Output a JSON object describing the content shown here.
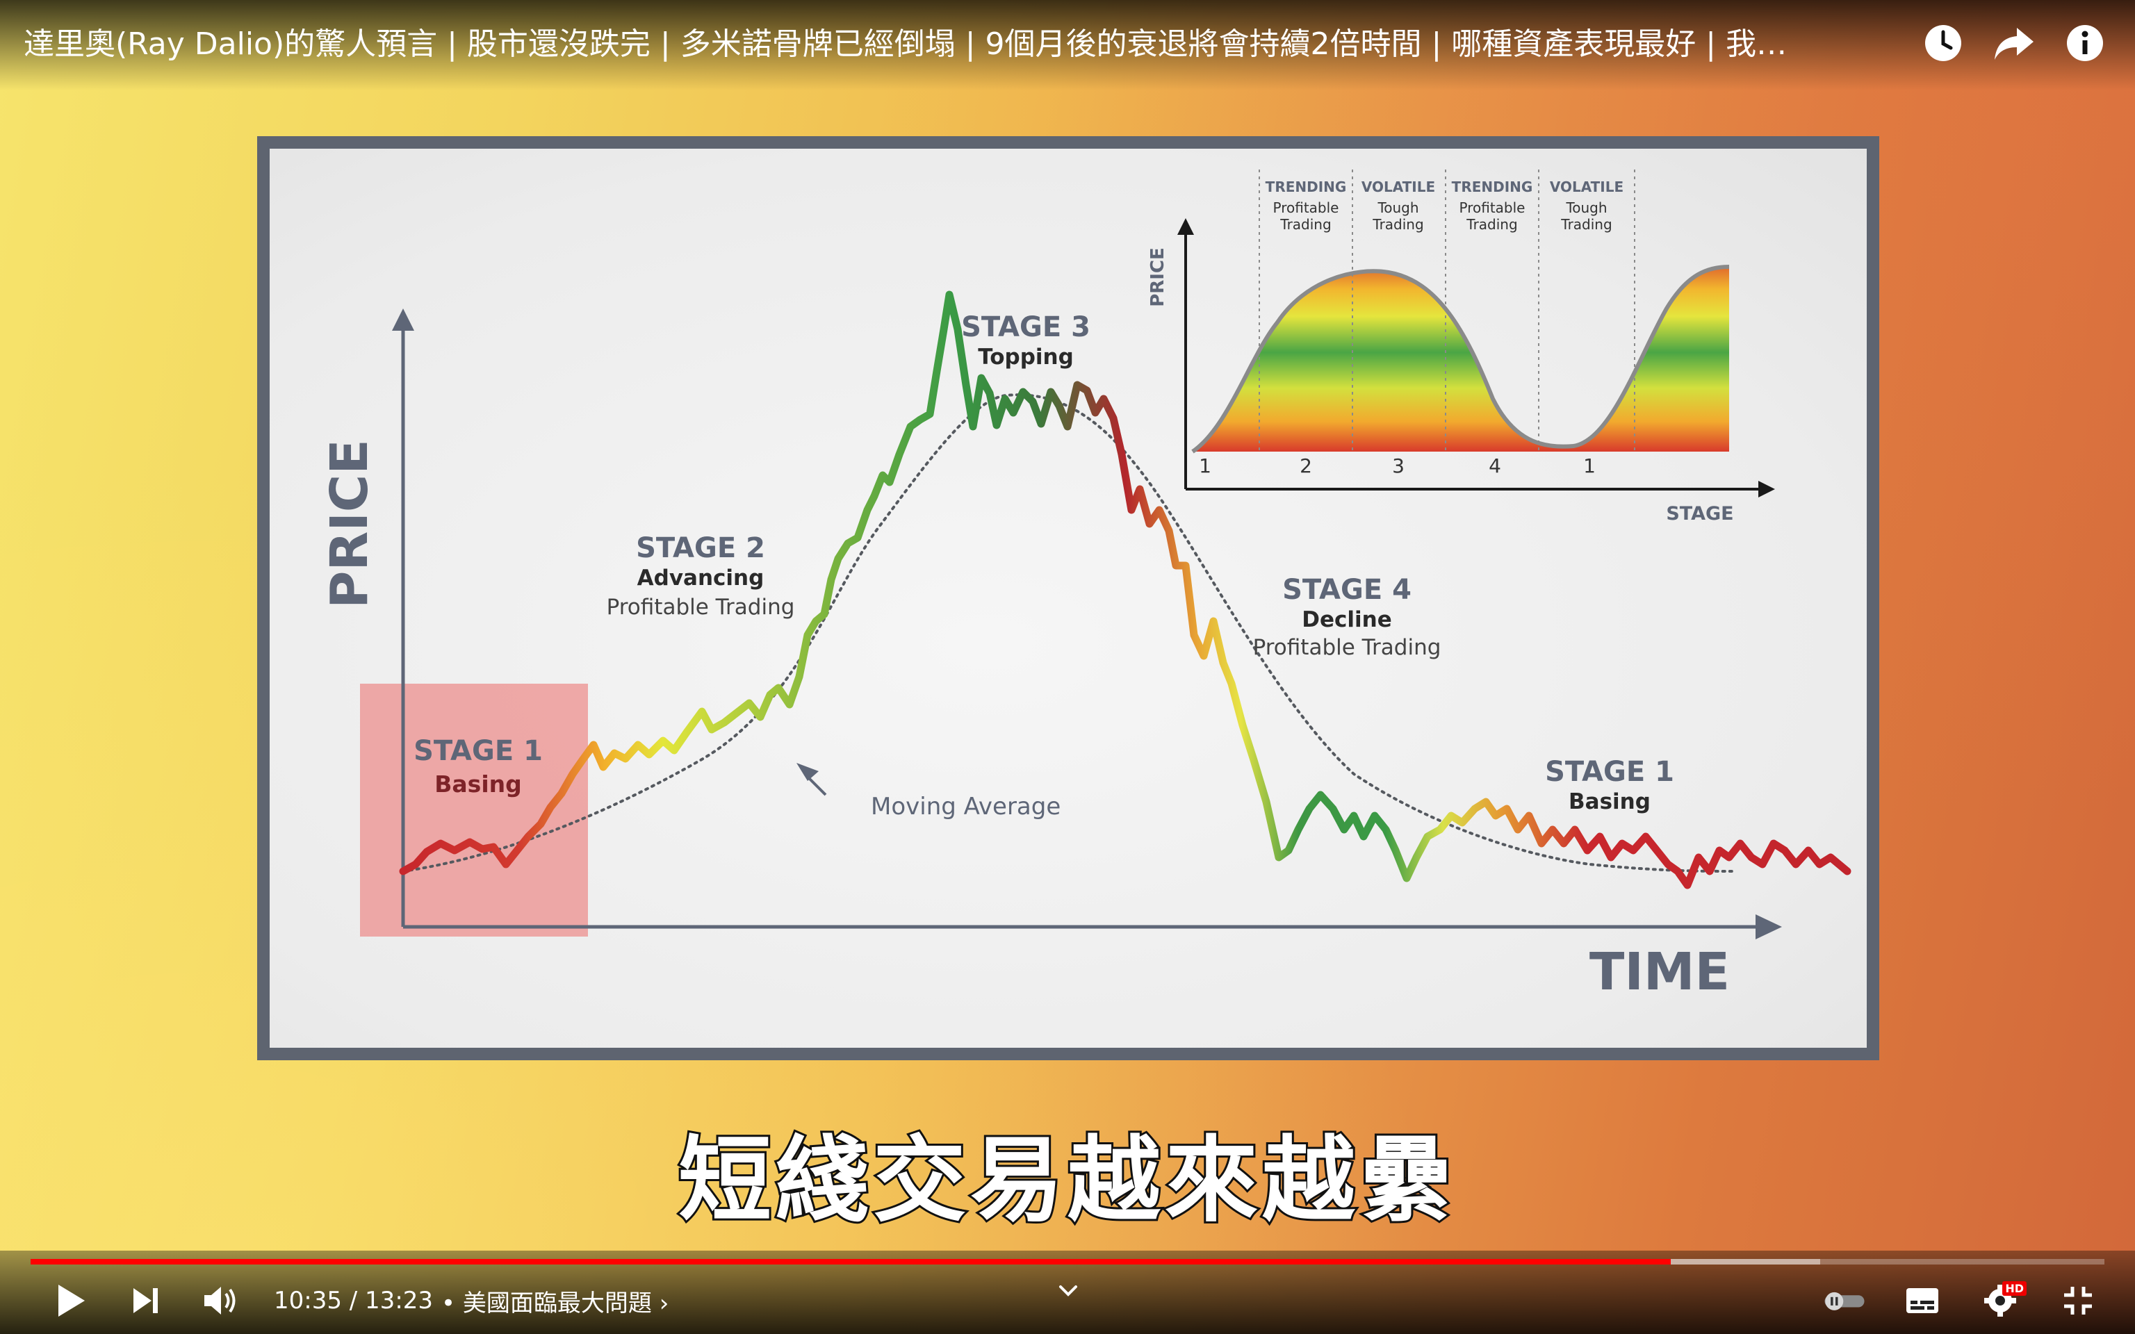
{
  "header": {
    "title": "達里奧(Ray Dalio)的驚人預言 | 股市還沒跌完 | 多米諾骨牌已經倒塌 | 9個月後的衰退將會持續2倍時間 | 哪種資產表現最好 | 我…",
    "icons": [
      "watch-later-icon",
      "share-icon",
      "info-icon"
    ]
  },
  "slide": {
    "main_chart": {
      "y_axis_label": "PRICE",
      "x_axis_label": "TIME",
      "moving_average_label": "Moving Average",
      "stage1_left": {
        "title": "STAGE 1",
        "subtitle": "Basing"
      },
      "stage2": {
        "title": "STAGE 2",
        "subtitle": "Advancing",
        "note": "Profitable Trading"
      },
      "stage3": {
        "title": "STAGE 3",
        "subtitle": "Topping"
      },
      "stage4": {
        "title": "STAGE 4",
        "subtitle": "Decline",
        "note": "Profitable Trading"
      },
      "stage1_right": {
        "title": "STAGE 1",
        "subtitle": "Basing"
      }
    },
    "inset_chart": {
      "y_axis_label": "PRICE",
      "x_axis_label": "STAGE",
      "columns": [
        {
          "header": "TRENDING",
          "line1": "Profitable",
          "line2": "Trading"
        },
        {
          "header": "VOLATILE",
          "line1": "Tough",
          "line2": "Trading"
        },
        {
          "header": "TRENDING",
          "line1": "Profitable",
          "line2": "Trading"
        },
        {
          "header": "VOLATILE",
          "line1": "Tough",
          "line2": "Trading"
        }
      ],
      "stage_numbers": [
        "1",
        "2",
        "3",
        "4",
        "1"
      ]
    }
  },
  "caption": "短綫交易越來越纍",
  "player": {
    "time": "10:35 / 13:23",
    "chapter": "• 美國面臨最大問題 ›",
    "progress_fraction": 0.791,
    "buffer_fraction": 0.863,
    "accent": "#ff0000",
    "hd_badge": "HD"
  }
}
